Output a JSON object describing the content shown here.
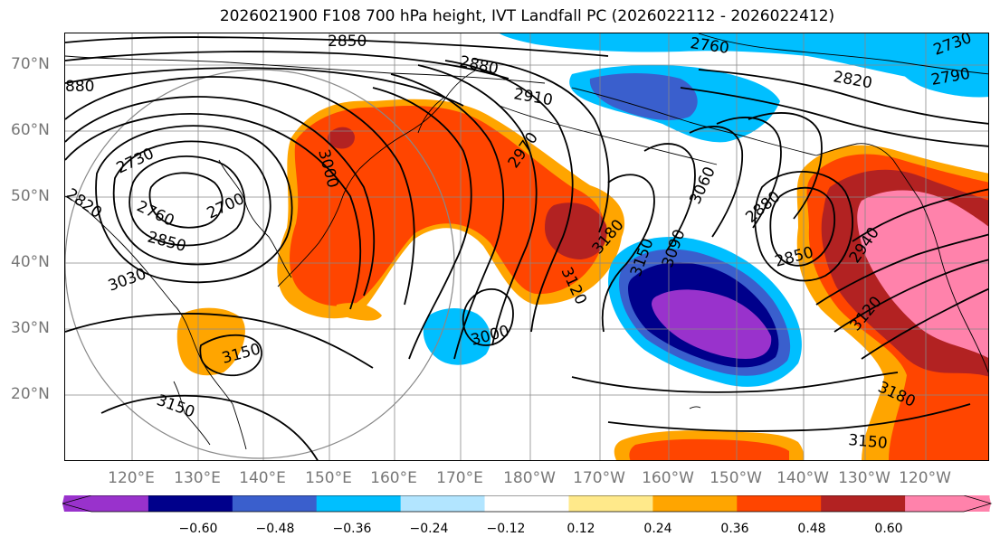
{
  "title": "2026021900 F108 700 hPa height, IVT Landfall PC (2026022112 - 2026022412)",
  "lat_labels": [
    "20°N",
    "30°N",
    "40°N",
    "50°N",
    "60°N",
    "70°N"
  ],
  "lon_labels": [
    "120°E",
    "130°E",
    "140°E",
    "150°E",
    "160°E",
    "170°E",
    "180°W",
    "170°W",
    "160°W",
    "150°W",
    "140°W",
    "130°W",
    "120°W"
  ],
  "contour_labels": [
    "2850",
    "2760",
    "2730",
    "2880",
    "2820",
    "2790",
    "880",
    "2910",
    "2730",
    "2820",
    "2760",
    "2700",
    "2850",
    "3000",
    "2970",
    "3060",
    "3090",
    "3150",
    "3180",
    "3120",
    "2880",
    "2850",
    "2940",
    "3120",
    "3030",
    "3000",
    "3150",
    "3150",
    "3180",
    "3150"
  ],
  "colorbar": {
    "ticks": [
      "−0.60",
      "−0.48",
      "−0.36",
      "−0.24",
      "−0.12",
      "0.12",
      "0.24",
      "0.36",
      "0.48",
      "0.60"
    ],
    "colors": [
      "#9932CC",
      "#00008B",
      "#3A5FCD",
      "#00BFFF",
      "#B2E5FF",
      "#FFFFFF",
      "#FFE98A",
      "#FFA500",
      "#FF4500",
      "#B22222",
      "#FF82AB"
    ]
  },
  "colors": {
    "contour": "#000000",
    "coast": "#000000",
    "grid": "#888888",
    "circle": "#888888"
  }
}
